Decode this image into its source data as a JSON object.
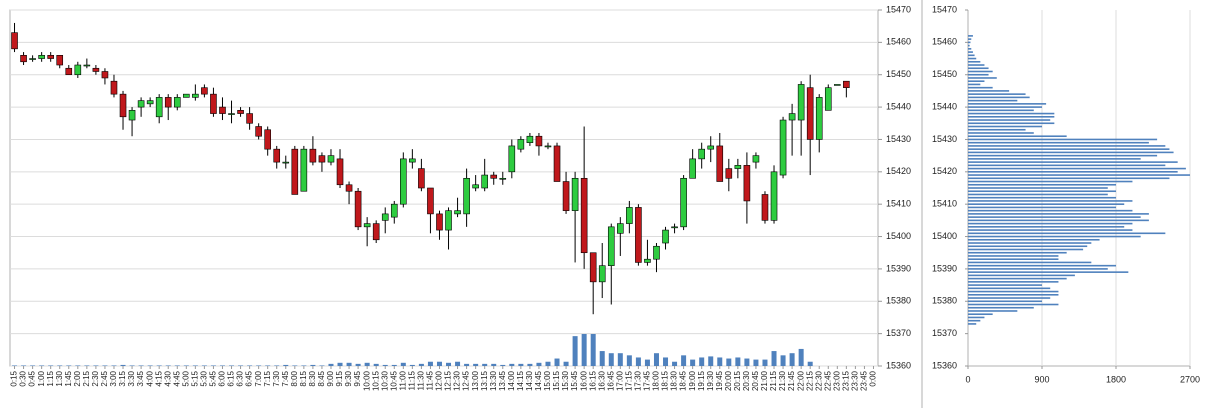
{
  "chart_data": [
    {
      "type": "candlestick",
      "categories": [
        "0:15",
        "0:30",
        "0:45",
        "1:00",
        "1:15",
        "1:30",
        "1:45",
        "2:00",
        "2:15",
        "2:30",
        "2:45",
        "3:00",
        "3:15",
        "3:30",
        "3:45",
        "4:00",
        "4:15",
        "4:30",
        "4:45",
        "5:00",
        "5:15",
        "5:30",
        "5:45",
        "6:00",
        "6:15",
        "6:30",
        "6:45",
        "7:00",
        "7:15",
        "7:30",
        "7:45",
        "8:00",
        "8:15",
        "8:30",
        "8:45",
        "9:00",
        "9:15",
        "9:30",
        "9:45",
        "10:00",
        "10:15",
        "10:30",
        "10:45",
        "11:00",
        "11:15",
        "11:30",
        "11:45",
        "12:00",
        "12:15",
        "12:30",
        "12:45",
        "13:00",
        "13:15",
        "13:30",
        "13:45",
        "14:00",
        "14:15",
        "14:30",
        "14:45",
        "15:00",
        "15:15",
        "15:30",
        "15:45",
        "16:00",
        "16:15",
        "16:30",
        "16:45",
        "17:00",
        "17:15",
        "17:30",
        "17:45",
        "18:00",
        "18:15",
        "18:30",
        "18:45",
        "19:00",
        "19:15",
        "19:30",
        "19:45",
        "20:00",
        "20:15",
        "20:30",
        "20:45",
        "21:00",
        "21:15",
        "21:30",
        "21:45",
        "22:00",
        "22:15",
        "22:30",
        "22:45",
        "23:00",
        "23:15",
        "23:30",
        "23:45",
        "0:00"
      ],
      "open": [
        15463,
        15456,
        15455,
        15455,
        15456,
        15456,
        15452,
        15450,
        15453,
        15452,
        15451,
        15448,
        15444,
        15436,
        15440,
        15441,
        15437,
        15443,
        15440,
        15443,
        15443,
        15446,
        15444,
        15440,
        15438,
        15439,
        15438,
        15434,
        15433,
        15427,
        15423,
        15427,
        15414,
        15427,
        15425,
        15423,
        15424,
        15416,
        15414,
        15403,
        15404,
        15405,
        15406,
        15410,
        15423,
        15421,
        15415,
        15407,
        15402,
        15407,
        15407,
        15415,
        15415,
        15419,
        15418,
        15420,
        15427,
        15429,
        15431,
        15428,
        15428,
        15417,
        15408,
        15418,
        15395,
        15386,
        15391,
        15401,
        15404,
        15409,
        15392,
        15393,
        15398,
        15403,
        15403,
        15418,
        15424,
        15427,
        15428,
        15421,
        15421,
        15422,
        15423,
        15413,
        15405,
        15419,
        15436,
        15436,
        15446,
        15430,
        15439,
        15447,
        15448,
        null,
        null,
        null
      ],
      "high": [
        15466,
        15457,
        15456,
        15457,
        15457,
        15456,
        15453,
        15454,
        15455,
        15453,
        15452,
        15450,
        15445,
        15440,
        15443,
        15443,
        15444,
        15444,
        15444,
        15444,
        15447,
        15447,
        15446,
        15443,
        15442,
        15440,
        15440,
        15435,
        15434,
        15428,
        15425,
        15428,
        15428,
        15431,
        15426,
        15427,
        15427,
        15417,
        15415,
        15406,
        15405,
        15409,
        15411,
        15426,
        15427,
        15424,
        15415,
        15408,
        15409,
        15412,
        15421,
        15419,
        15424,
        15420,
        15420,
        15430,
        15431,
        15432,
        15432,
        15429,
        15429,
        15420,
        15420,
        15434,
        15395,
        15398,
        15404,
        15406,
        15411,
        15410,
        15399,
        15398,
        15403,
        15404,
        15419,
        15427,
        15429,
        15431,
        15432,
        15424,
        15424,
        15426,
        15426,
        15414,
        15422,
        15437,
        15441,
        15448,
        15450,
        15444,
        15447,
        15447,
        15448,
        null,
        null,
        null
      ],
      "low": [
        15457,
        15453,
        15454,
        15454,
        15454,
        15452,
        15450,
        15449,
        15452,
        15450,
        15447,
        15443,
        15433,
        15431,
        15437,
        15440,
        15435,
        15436,
        15439,
        15443,
        15442,
        15443,
        15437,
        15436,
        15435,
        15437,
        15433,
        15430,
        15425,
        15421,
        15421,
        15413,
        15414,
        15422,
        15420,
        15422,
        15415,
        15410,
        15402,
        15397,
        15398,
        15401,
        15404,
        15409,
        15421,
        15414,
        15401,
        15399,
        15396,
        15406,
        15403,
        15414,
        15414,
        15416,
        15416,
        15418,
        15426,
        15428,
        15425,
        15427,
        15417,
        15407,
        15392,
        15390,
        15376,
        15381,
        15379,
        15394,
        15401,
        15391,
        15391,
        15389,
        15396,
        15401,
        15402,
        15418,
        15421,
        15423,
        15417,
        15414,
        15418,
        15404,
        15421,
        15404,
        15404,
        15418,
        15425,
        15425,
        15419,
        15426,
        15439,
        15447,
        15443,
        null,
        null,
        null
      ],
      "close": [
        15458,
        15454,
        15455,
        15456,
        15455,
        15453,
        15450,
        15453,
        15453,
        15451,
        15449,
        15444,
        15437,
        15439,
        15442,
        15442,
        15443,
        15440,
        15443,
        15444,
        15444,
        15444,
        15438,
        15438,
        15438,
        15438,
        15435,
        15431,
        15427,
        15423,
        15423,
        15413,
        15427,
        15423,
        15423,
        15425,
        15416,
        15414,
        15403,
        15404,
        15399,
        15407,
        15410,
        15424,
        15424,
        15415,
        15407,
        15402,
        15408,
        15408,
        15418,
        15416,
        15419,
        15418,
        15418,
        15428,
        15430,
        15431,
        15428,
        15428,
        15417,
        15408,
        15418,
        15395,
        15386,
        15391,
        15403,
        15404,
        15409,
        15392,
        15393,
        15397,
        15402,
        15403,
        15418,
        15424,
        15427,
        15428,
        15417,
        15418,
        15422,
        15411,
        15425,
        15405,
        15420,
        15436,
        15438,
        15447,
        15430,
        15443,
        15446,
        15447,
        15446,
        null,
        null,
        null
      ],
      "volume": [
        5,
        5,
        5,
        5,
        5,
        5,
        5,
        5,
        5,
        5,
        5,
        5,
        10,
        5,
        5,
        5,
        5,
        5,
        5,
        5,
        5,
        5,
        5,
        5,
        5,
        5,
        5,
        5,
        5,
        5,
        10,
        5,
        5,
        10,
        5,
        20,
        30,
        30,
        20,
        30,
        20,
        10,
        10,
        30,
        10,
        20,
        40,
        40,
        30,
        40,
        20,
        20,
        20,
        20,
        10,
        20,
        20,
        20,
        30,
        40,
        70,
        40,
        280,
        300,
        300,
        140,
        120,
        120,
        100,
        80,
        60,
        120,
        80,
        40,
        100,
        60,
        80,
        90,
        80,
        70,
        80,
        70,
        60,
        60,
        140,
        100,
        120,
        160,
        40,
        0,
        0,
        0,
        0,
        0,
        0,
        0
      ],
      "up_color": "#2ecc40",
      "down_color": "#c0181c",
      "volume_color": "#4f81bd",
      "ylim": [
        15360,
        15470
      ],
      "yticks": [
        15360,
        15370,
        15380,
        15390,
        15400,
        15410,
        15420,
        15430,
        15440,
        15450,
        15460,
        15470
      ],
      "grid": true
    },
    {
      "type": "profile",
      "y": [
        15462,
        15461,
        15460,
        15459,
        15458,
        15457,
        15456,
        15455,
        15454,
        15453,
        15452,
        15451,
        15450,
        15449,
        15448,
        15447,
        15446,
        15445,
        15444,
        15443,
        15442,
        15441,
        15440,
        15439,
        15438,
        15437,
        15436,
        15435,
        15434,
        15433,
        15432,
        15431,
        15430,
        15429,
        15428,
        15427,
        15426,
        15425,
        15424,
        15423,
        15422,
        15421,
        15420,
        15419,
        15418,
        15417,
        15416,
        15415,
        15414,
        15413,
        15412,
        15411,
        15410,
        15409,
        15408,
        15407,
        15406,
        15405,
        15404,
        15403,
        15402,
        15401,
        15400,
        15399,
        15398,
        15397,
        15396,
        15395,
        15394,
        15393,
        15392,
        15391,
        15390,
        15389,
        15388,
        15387,
        15386,
        15385,
        15384,
        15383,
        15382,
        15381,
        15380,
        15379,
        15378,
        15377,
        15376,
        15375,
        15374,
        15373
      ],
      "values": [
        60,
        40,
        30,
        20,
        40,
        60,
        80,
        100,
        150,
        200,
        250,
        300,
        250,
        350,
        200,
        150,
        300,
        500,
        700,
        750,
        600,
        950,
        900,
        800,
        1050,
        1050,
        1000,
        1050,
        900,
        700,
        800,
        1200,
        2300,
        2200,
        2400,
        2450,
        2500,
        2300,
        2100,
        2550,
        2400,
        2650,
        2550,
        2700,
        2450,
        2000,
        1800,
        1700,
        1800,
        1700,
        1800,
        2000,
        1900,
        1800,
        2000,
        2200,
        2100,
        2200,
        2000,
        1900,
        2000,
        2400,
        2100,
        1600,
        1500,
        1450,
        1400,
        1200,
        1100,
        1100,
        1500,
        1800,
        1700,
        1950,
        1300,
        1200,
        1100,
        900,
        1000,
        1100,
        1100,
        1000,
        900,
        1100,
        800,
        600,
        300,
        200,
        150,
        100
      ],
      "color": "#4f81bd",
      "xlim": [
        0,
        2700
      ],
      "xticks": [
        0,
        900,
        1800,
        2700
      ],
      "ylim": [
        15360,
        15470
      ],
      "yticks": [
        15360,
        15370,
        15380,
        15390,
        15400,
        15410,
        15420,
        15430,
        15440,
        15450,
        15460,
        15470
      ],
      "grid": true
    }
  ]
}
